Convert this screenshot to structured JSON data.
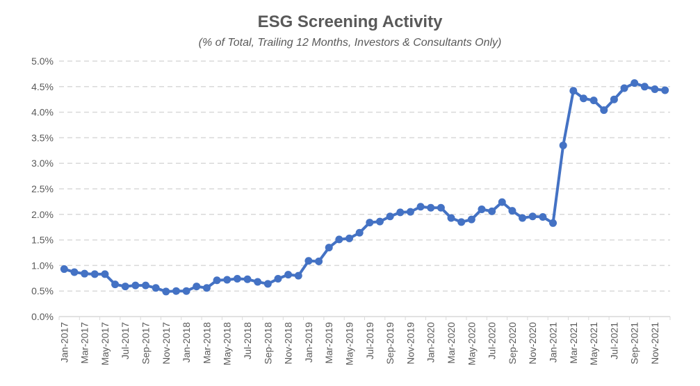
{
  "chart_data": {
    "type": "line",
    "title": "ESG Screening Activity",
    "subtitle": "(% of Total, Trailing 12 Months, Investors & Consultants Only)",
    "xlabel": "",
    "ylabel": "",
    "ylim": [
      0,
      5.0
    ],
    "yticks": [
      "0.0%",
      "0.5%",
      "1.0%",
      "1.5%",
      "2.0%",
      "2.5%",
      "3.0%",
      "3.5%",
      "4.0%",
      "4.5%",
      "5.0%"
    ],
    "grid": true,
    "legend": "none",
    "color": "#4472C4",
    "x": [
      "Jan-2017",
      "Feb-2017",
      "Mar-2017",
      "Apr-2017",
      "May-2017",
      "Jun-2017",
      "Jul-2017",
      "Aug-2017",
      "Sep-2017",
      "Oct-2017",
      "Nov-2017",
      "Dec-2017",
      "Jan-2018",
      "Feb-2018",
      "Mar-2018",
      "Apr-2018",
      "May-2018",
      "Jun-2018",
      "Jul-2018",
      "Aug-2018",
      "Sep-2018",
      "Oct-2018",
      "Nov-2018",
      "Dec-2018",
      "Jan-2019",
      "Feb-2019",
      "Mar-2019",
      "Apr-2019",
      "May-2019",
      "Jun-2019",
      "Jul-2019",
      "Aug-2019",
      "Sep-2019",
      "Oct-2019",
      "Nov-2019",
      "Dec-2019",
      "Jan-2020",
      "Feb-2020",
      "Mar-2020",
      "Apr-2020",
      "May-2020",
      "Jun-2020",
      "Jul-2020",
      "Aug-2020",
      "Sep-2020",
      "Oct-2020",
      "Nov-2020",
      "Dec-2020",
      "Jan-2021",
      "Feb-2021",
      "Mar-2021",
      "Apr-2021",
      "May-2021",
      "Jun-2021",
      "Jul-2021",
      "Aug-2021",
      "Sep-2021",
      "Oct-2021",
      "Nov-2021",
      "Dec-2021"
    ],
    "values": [
      0.93,
      0.87,
      0.84,
      0.83,
      0.83,
      0.63,
      0.59,
      0.61,
      0.61,
      0.56,
      0.49,
      0.5,
      0.5,
      0.59,
      0.56,
      0.71,
      0.72,
      0.74,
      0.73,
      0.68,
      0.64,
      0.74,
      0.82,
      0.8,
      1.09,
      1.08,
      1.35,
      1.51,
      1.53,
      1.64,
      1.84,
      1.86,
      1.96,
      2.04,
      2.05,
      2.15,
      2.13,
      2.13,
      1.93,
      1.85,
      1.9,
      2.1,
      2.06,
      2.24,
      2.07,
      1.93,
      1.96,
      1.95,
      1.83,
      3.35,
      4.42,
      4.27,
      4.23,
      4.04,
      4.25,
      4.47,
      4.57,
      4.5,
      4.45,
      4.43
    ]
  }
}
